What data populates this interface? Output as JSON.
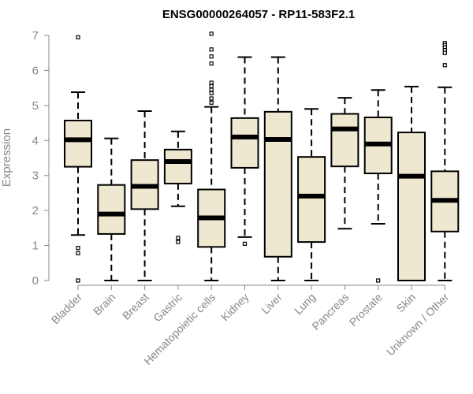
{
  "chart_data": {
    "type": "boxplot",
    "title": "ENSG00000264057 - RP11-583F2.1",
    "xlabel": "",
    "ylabel": "Expression",
    "ylim": [
      0,
      7
    ],
    "yticks": [
      0,
      1,
      2,
      3,
      4,
      5,
      6,
      7
    ],
    "categories": [
      "Bladder",
      "Brain",
      "Breast",
      "Gastric",
      "Hematopoietic cells",
      "Kidney",
      "Liver",
      "Lung",
      "Pancreas",
      "Prostate",
      "Skin",
      "Unknown / Other"
    ],
    "boxes": [
      {
        "category": "Bladder",
        "whisker_low": 1.3,
        "q1": 3.25,
        "median": 4.02,
        "q3": 4.57,
        "whisker_high": 5.38,
        "outliers": [
          6.95,
          0.93,
          0.78,
          0.0
        ]
      },
      {
        "category": "Brain",
        "whisker_low": 0.0,
        "q1": 1.33,
        "median": 1.9,
        "q3": 2.73,
        "whisker_high": 4.06,
        "outliers": []
      },
      {
        "category": "Breast",
        "whisker_low": 0.0,
        "q1": 2.04,
        "median": 2.69,
        "q3": 3.44,
        "whisker_high": 4.84,
        "outliers": []
      },
      {
        "category": "Gastric",
        "whisker_low": 2.12,
        "q1": 2.77,
        "median": 3.4,
        "q3": 3.74,
        "whisker_high": 4.26,
        "outliers": [
          1.22,
          1.1
        ]
      },
      {
        "category": "Hematopoietic cells",
        "whisker_low": 0.0,
        "q1": 0.96,
        "median": 1.79,
        "q3": 2.6,
        "whisker_high": 4.96,
        "outliers": [
          7.05,
          6.6,
          6.4,
          6.2,
          5.65,
          5.55,
          5.45,
          5.35,
          5.2,
          5.08
        ]
      },
      {
        "category": "Kidney",
        "whisker_low": 1.24,
        "q1": 3.22,
        "median": 4.1,
        "q3": 4.64,
        "whisker_high": 6.38,
        "outliers": [
          1.05
        ]
      },
      {
        "category": "Liver",
        "whisker_low": 0.0,
        "q1": 0.68,
        "median": 4.03,
        "q3": 4.82,
        "whisker_high": 6.38,
        "outliers": []
      },
      {
        "category": "Lung",
        "whisker_low": 0.0,
        "q1": 1.1,
        "median": 2.41,
        "q3": 3.53,
        "whisker_high": 4.9,
        "outliers": []
      },
      {
        "category": "Pancreas",
        "whisker_low": 1.48,
        "q1": 3.26,
        "median": 4.33,
        "q3": 4.76,
        "whisker_high": 5.22,
        "outliers": []
      },
      {
        "category": "Prostate",
        "whisker_low": 1.62,
        "q1": 3.06,
        "median": 3.9,
        "q3": 4.66,
        "whisker_high": 5.44,
        "outliers": [
          0.0
        ]
      },
      {
        "category": "Skin",
        "whisker_low": 0.0,
        "q1": 0.0,
        "median": 2.98,
        "q3": 4.23,
        "whisker_high": 5.54,
        "outliers": []
      },
      {
        "category": "Unknown / Other",
        "whisker_low": 0.0,
        "q1": 1.4,
        "median": 2.29,
        "q3": 3.12,
        "whisker_high": 5.52,
        "outliers": [
          6.78,
          6.72,
          6.66,
          6.58,
          6.5,
          6.15
        ]
      }
    ],
    "colors": {
      "box_fill": "#efe8d0",
      "stroke": "#000000",
      "axis_text": "#888888"
    }
  }
}
